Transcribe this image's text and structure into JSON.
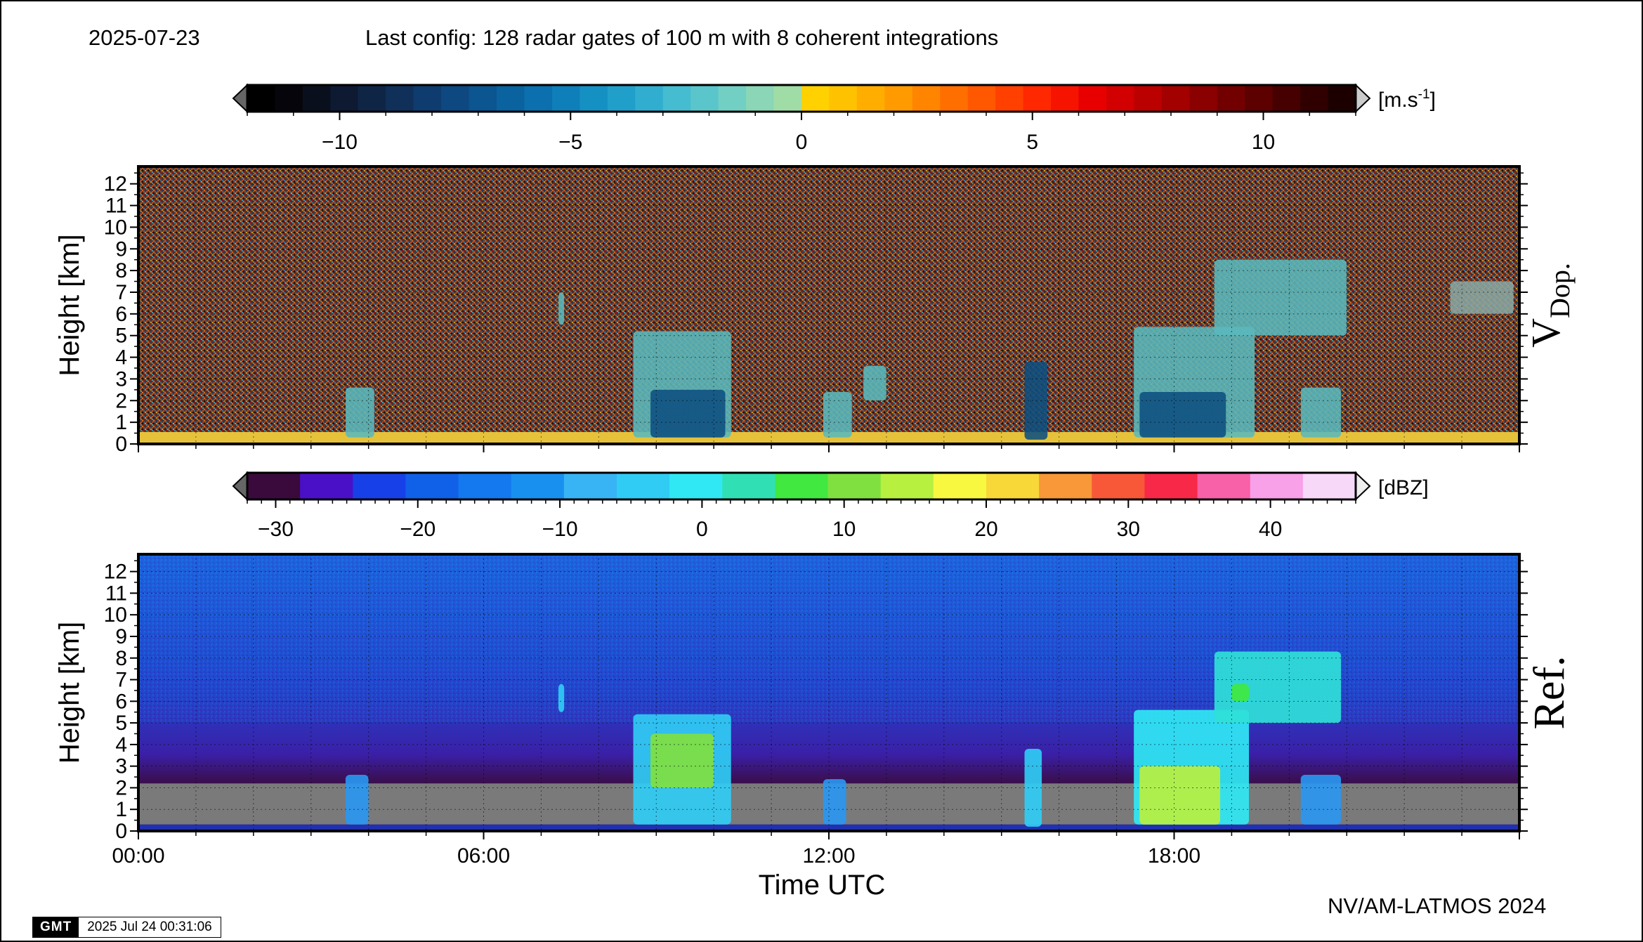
{
  "header": {
    "date": "2025-07-23",
    "config": "Last config: 128 radar gates of 100 m with 8 coherent integrations"
  },
  "footer": {
    "credit": "NV/AM-LATMOS 2024",
    "stamp_logo": "GMT",
    "stamp_time": "2025 Jul 24 00:31:06"
  },
  "chart_data": [
    {
      "type": "heatmap",
      "title": "V Dop.",
      "panel_label_main": "V",
      "panel_label_sub": "Dop.",
      "ylabel": "Height [km]",
      "xlabel": "",
      "ylim": [
        0,
        12.8
      ],
      "xlim_hours": [
        0,
        24
      ],
      "y_ticks": [
        0,
        1,
        2,
        3,
        4,
        5,
        6,
        7,
        8,
        9,
        10,
        11,
        12
      ],
      "colorbar": {
        "label_main": "[m.s",
        "label_exp": "-1",
        "label_end": "]",
        "range": [
          -12,
          12
        ],
        "tick_values": [
          -10,
          -5,
          0,
          5,
          10
        ],
        "tick_labels": [
          "−10",
          "−5",
          "0",
          "5",
          "10"
        ],
        "colors": [
          "#000000",
          "#05050b",
          "#0a0f1e",
          "#0d1a32",
          "#0f2546",
          "#10305a",
          "#0f3c6e",
          "#0d4880",
          "#0b5590",
          "#0a629f",
          "#0b70ad",
          "#0e7fb9",
          "#1590c3",
          "#219fcb",
          "#31aecf",
          "#45bcd0",
          "#5ac6cc",
          "#72cfc3",
          "#8ad6b7",
          "#a0dca6",
          "#ffd100",
          "#ffc200",
          "#ffae00",
          "#ff9a00",
          "#ff8500",
          "#ff6f00",
          "#ff5800",
          "#ff4000",
          "#ff2800",
          "#f61300",
          "#e80000",
          "#d20000",
          "#bb0000",
          "#a30000",
          "#8b0000",
          "#730000",
          "#5c0000",
          "#460000",
          "#300000",
          "#1c0000"
        ],
        "over_color": "#cccccc",
        "under_color": "#666666"
      }
    },
    {
      "type": "heatmap",
      "title": "Ref.",
      "panel_label_main": "Ref.",
      "ylabel": "Height [km]",
      "xlabel": "Time UTC",
      "ylim": [
        0,
        12.8
      ],
      "xlim_hours": [
        0,
        24
      ],
      "x_tick_values": [
        0,
        6,
        12,
        18
      ],
      "x_tick_labels": [
        "00:00",
        "06:00",
        "12:00",
        "18:00"
      ],
      "y_ticks": [
        0,
        1,
        2,
        3,
        4,
        5,
        6,
        7,
        8,
        9,
        10,
        11,
        12
      ],
      "colorbar": {
        "label_main": "[dBZ]",
        "range": [
          -32,
          46
        ],
        "tick_values": [
          -30,
          -20,
          -10,
          0,
          10,
          20,
          30,
          40
        ],
        "tick_labels": [
          "−30",
          "−20",
          "−10",
          "0",
          "10",
          "20",
          "30",
          "40"
        ],
        "colors": [
          "#3a0a3c",
          "#4a10c8",
          "#1840e8",
          "#1060e8",
          "#1478ee",
          "#1890f0",
          "#38b4f4",
          "#30ccf4",
          "#30e8f4",
          "#30e0b4",
          "#40e840",
          "#80e040",
          "#b8f040",
          "#f8f840",
          "#f8d838",
          "#f89838",
          "#f85838",
          "#f82848",
          "#f860a8",
          "#f8a0e8",
          "#f8d8f8"
        ],
        "over_color": "#eeeeee",
        "under_color": "#666666"
      }
    }
  ]
}
